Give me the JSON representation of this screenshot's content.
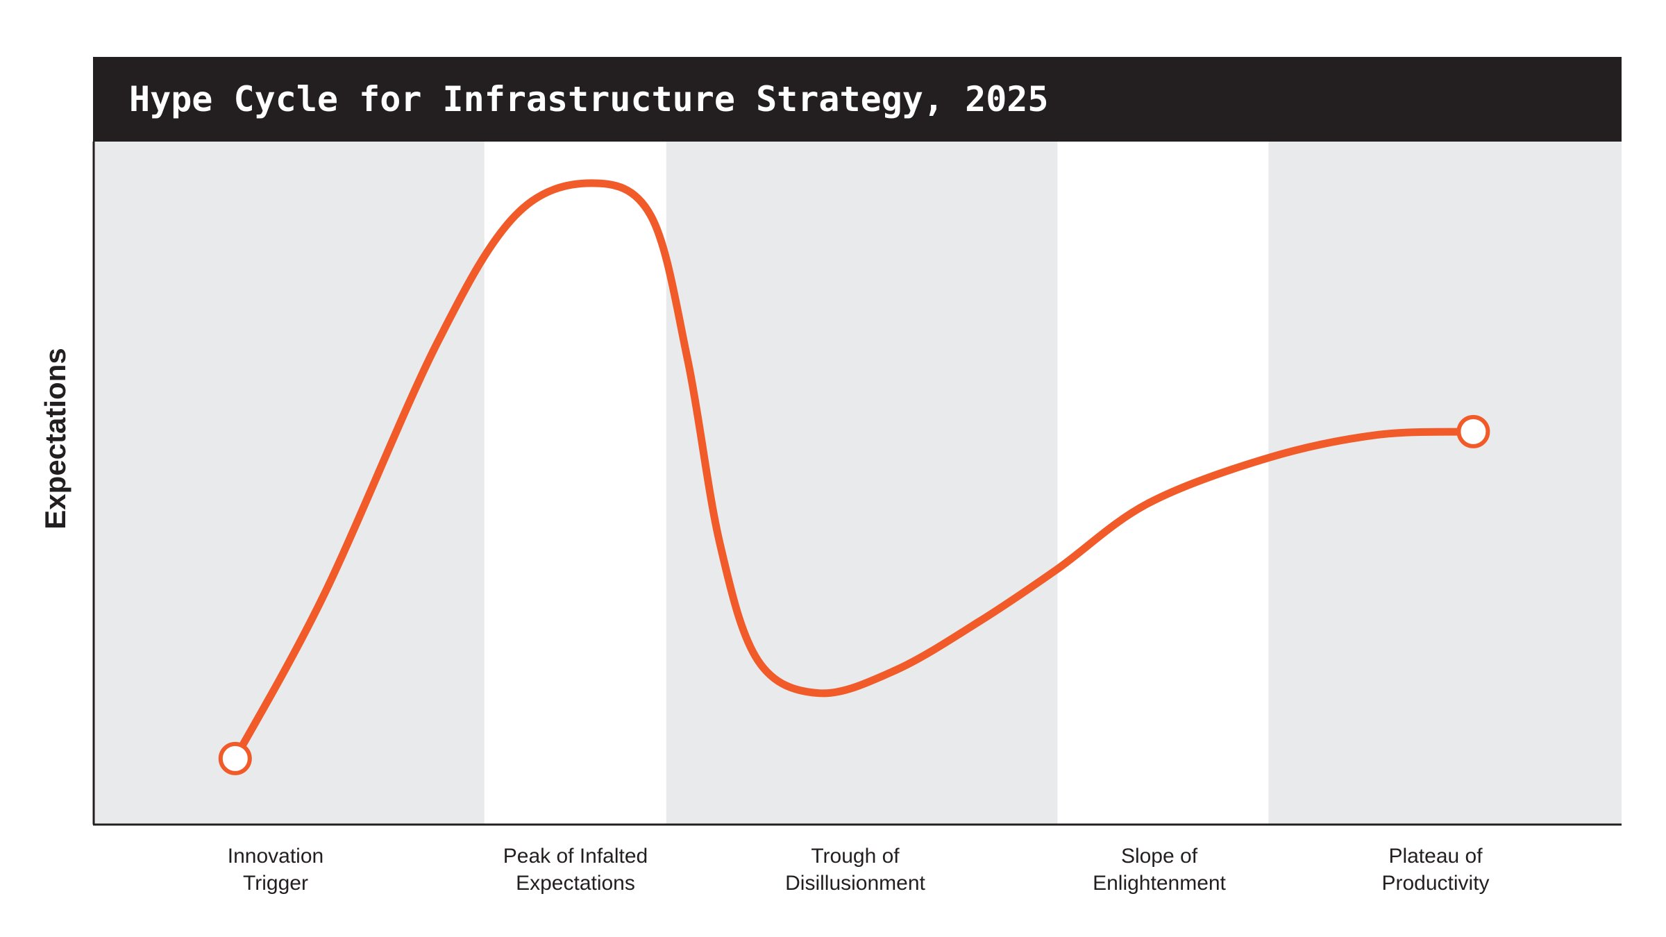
{
  "chart_data": {
    "type": "line",
    "title": "Hype Cycle for Infrastructure Strategy, 2025",
    "ylabel": "Expectations",
    "xlabel": "",
    "phases": [
      {
        "line1": "Innovation",
        "line2": "Trigger",
        "x_start": 0,
        "x_end": 25.6,
        "shaded": true
      },
      {
        "line1": "Peak of Infalted",
        "line2": "Expectations",
        "x_start": 25.6,
        "x_end": 37.5,
        "shaded": false
      },
      {
        "line1": "Trough of",
        "line2": "Disillusionment",
        "x_start": 37.5,
        "x_end": 63.1,
        "shaded": true
      },
      {
        "line1": "Slope of",
        "line2": "Enlightenment",
        "x_start": 63.1,
        "x_end": 76.9,
        "shaded": false
      },
      {
        "line1": "Plateau of",
        "line2": "Productivity",
        "x_start": 76.9,
        "x_end": 100,
        "shaded": true
      }
    ],
    "curve": [
      [
        9.3,
        5
      ],
      [
        15.1,
        30
      ],
      [
        22.4,
        68
      ],
      [
        27.6,
        88
      ],
      [
        32.6,
        93
      ],
      [
        36.5,
        88
      ],
      [
        38.9,
        66
      ],
      [
        41.0,
        38
      ],
      [
        43.5,
        20
      ],
      [
        47.5,
        15
      ],
      [
        52.5,
        18.5
      ],
      [
        58.0,
        26
      ],
      [
        63.1,
        34
      ],
      [
        69.0,
        44
      ],
      [
        76.9,
        51
      ],
      [
        84.0,
        54.5
      ],
      [
        90.3,
        55
      ]
    ],
    "start_marker": [
      9.3,
      5
    ],
    "end_marker": [
      90.3,
      55
    ],
    "xlim": [
      0,
      100
    ],
    "ylim": [
      0,
      100
    ],
    "grid": false,
    "legend": "none",
    "colors": {
      "curve": "#f15a29",
      "shade": "#e9eaeb",
      "title_bar": "#231f20",
      "axis": "#231f20",
      "marker_fill": "#ffffff"
    }
  }
}
